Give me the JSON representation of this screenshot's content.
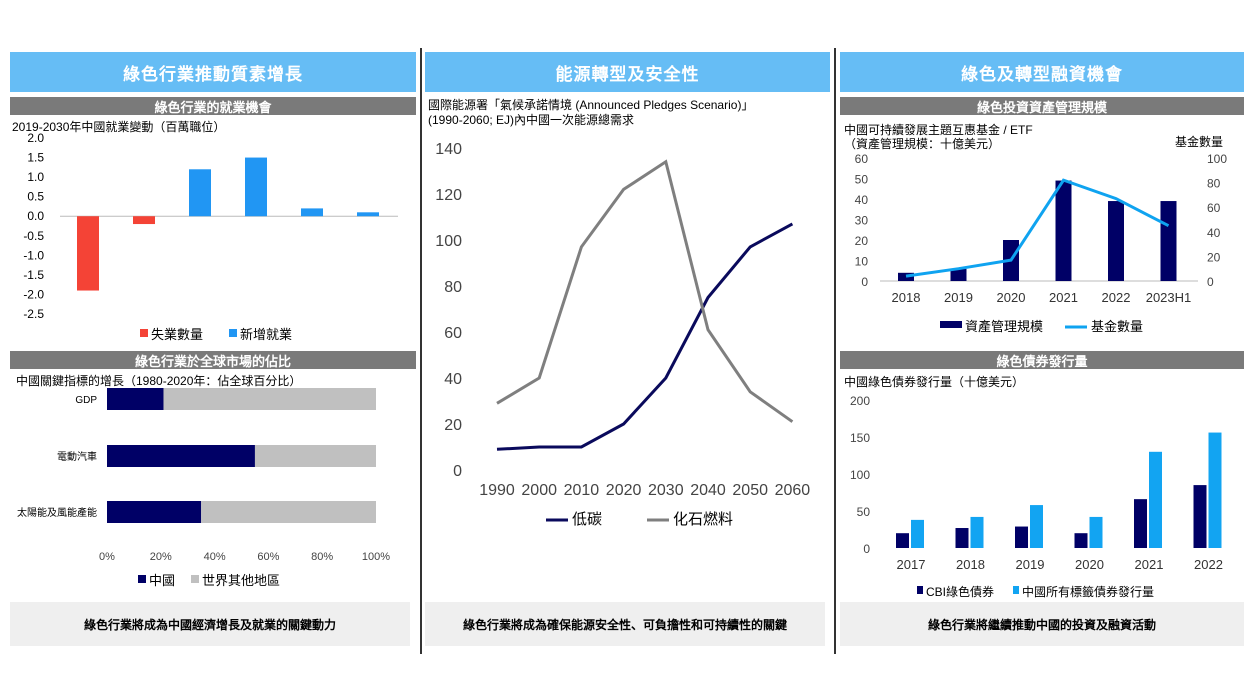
{
  "columns": [
    {
      "header": "綠色行業推動質素增長",
      "footer": "綠色行業將成為中國經濟增長及就業的關鍵動力",
      "panels": [
        {
          "subheader": "綠色行業的就業機會",
          "caption": "2019-2030年中國就業變動（百萬職位）"
        },
        {
          "subheader": "綠色行業於全球市場的佔比",
          "caption": "中國關鍵指標的增長（1980-2020年：佔全球百分比）"
        }
      ]
    },
    {
      "header": "能源轉型及安全性",
      "footer": "綠色行業將成為確保能源安全性、可負擔性和可持續性的關鍵",
      "panels": [
        {
          "caption_line1": "國際能源署「氣候承諾情境 (Announced Pledges Scenario)」",
          "caption_line2": "(1990-2060; EJ)內中國一次能源總需求"
        }
      ]
    },
    {
      "header": "綠色及轉型融資機會",
      "footer": "綠色行業將繼續推動中國的投資及融資活動",
      "panels": [
        {
          "subheader": "綠色投資資產管理規模",
          "caption_line1": "中國可持續發展主題互惠基金 / ETF",
          "caption_line2": "（資產管理規模：十億美元）",
          "right_axis_title": "基金數量"
        },
        {
          "subheader": "綠色債券發行量",
          "caption": "中國綠色債券發行量（十億美元）"
        }
      ]
    }
  ],
  "chart_data": [
    {
      "type": "bar",
      "title": "2019-2030年中國就業變動（百萬職位）",
      "categories": [
        "",
        "",
        "",
        "",
        "",
        ""
      ],
      "series": [
        {
          "name": "失業數量",
          "color": "#f44336",
          "values": [
            -1.9,
            -0.2,
            null,
            null,
            null,
            null
          ]
        },
        {
          "name": "新增就業",
          "color": "#2196f3",
          "values": [
            null,
            null,
            1.2,
            1.5,
            0.2,
            0.1
          ]
        }
      ],
      "ylim": [
        -2.5,
        2.0
      ],
      "yticks": [
        "2.0",
        "1.5",
        "1.0",
        "0.5",
        "0.0",
        "-0.5",
        "-1.0",
        "-1.5",
        "-2.0",
        "-2.5"
      ],
      "legend": "bottom"
    },
    {
      "type": "bar",
      "title": "中國關鍵指標的增長（1980-2020年：佔全球百分比）",
      "categories": [
        "GDP",
        "電動汽車",
        "太陽能及風能產能"
      ],
      "series": [
        {
          "name": "中國",
          "color": "#000066",
          "values": [
            21,
            55,
            35
          ]
        },
        {
          "name": "世界其他地區",
          "color": "#c0c0c0",
          "values": [
            79,
            45,
            65
          ]
        }
      ],
      "xticks": [
        "0%",
        "20%",
        "40%",
        "60%",
        "80%",
        "100%"
      ],
      "xlim": [
        0,
        100
      ],
      "legend": "bottom"
    },
    {
      "type": "line",
      "title": "國際能源署「氣候承諾情境 (Announced Pledges Scenario)」(1990-2060; EJ)內中國一次能源總需求",
      "x": [
        "1990",
        "2000",
        "2010",
        "2020",
        "2030",
        "2040",
        "2050",
        "2060"
      ],
      "series": [
        {
          "name": "低碳",
          "color": "#0a0a5c",
          "values": [
            9,
            10,
            10,
            20,
            40,
            75,
            97,
            107
          ]
        },
        {
          "name": "化石燃料",
          "color": "#7f7f7f",
          "values": [
            29,
            40,
            97,
            122,
            134,
            61,
            34,
            21
          ]
        }
      ],
      "ylim": [
        0,
        140
      ],
      "yticks": [
        "0",
        "20",
        "40",
        "60",
        "80",
        "100",
        "120",
        "140"
      ],
      "legend": "bottom"
    },
    {
      "type": "bar",
      "title": "中國可持續發展主題互惠基金 / ETF",
      "categories": [
        "2018",
        "2019",
        "2020",
        "2021",
        "2022",
        "2023H1"
      ],
      "series": [
        {
          "name": "資產管理規模",
          "color": "#000066",
          "axis": "left",
          "values": [
            4,
            6,
            20,
            49,
            39,
            39
          ]
        },
        {
          "name": "基金數量",
          "color": "#0fa3f0",
          "type": "line",
          "axis": "right",
          "values": [
            4,
            10,
            17,
            82,
            67,
            45
          ]
        }
      ],
      "ylim": [
        0,
        60
      ],
      "yticks": [
        "0",
        "10",
        "20",
        "30",
        "40",
        "50",
        "60"
      ],
      "y2lim": [
        0,
        100
      ],
      "y2ticks": [
        "0",
        "20",
        "40",
        "60",
        "80",
        "100"
      ],
      "legend": "bottom"
    },
    {
      "type": "bar",
      "title": "中國綠色債券發行量（十億美元）",
      "categories": [
        "2017",
        "2018",
        "2019",
        "2020",
        "2021",
        "2022"
      ],
      "series": [
        {
          "name": "CBI綠色債券",
          "color": "#000066",
          "values": [
            20,
            27,
            29,
            20,
            66,
            85
          ]
        },
        {
          "name": "中國所有標籤債券發行量",
          "color": "#12a4f2",
          "values": [
            38,
            42,
            58,
            42,
            130,
            156
          ]
        }
      ],
      "ylim": [
        0,
        200
      ],
      "yticks": [
        "0",
        "50",
        "100",
        "150",
        "200"
      ],
      "legend": "bottom"
    }
  ]
}
